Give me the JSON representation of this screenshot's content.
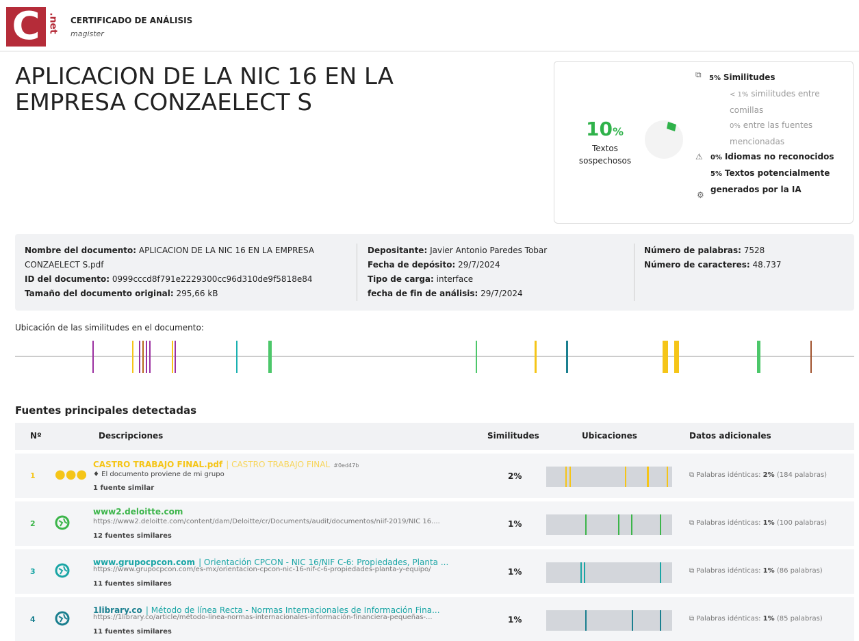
{
  "header": {
    "logo_letter": "C",
    "logo_side": ".net",
    "title": "CERTIFICADO DE ANÁLISIS",
    "subtitle": "magister"
  },
  "document_title": "APLICACION DE LA NIC 16 EN LA EMPRESA CONZAELECT S",
  "summary": {
    "value": "10",
    "unit": "%",
    "label": "Textos sospechosos",
    "items": [
      {
        "value": "5%",
        "label": "Similitudes",
        "sub": [
          {
            "value": "< 1%",
            "label": "similitudes entre comillas"
          },
          {
            "value": "0%",
            "label": "entre las fuentes mencionadas"
          }
        ]
      },
      {
        "value": "0%",
        "label": "Idiomas no reconocidos"
      },
      {
        "value": "5%",
        "label": "Textos potencialmente generados por la IA"
      }
    ]
  },
  "info": [
    [
      {
        "label": "Nombre del documento:",
        "value": "APLICACION DE LA NIC 16 EN LA EMPRESA CONZAELECT S.pdf"
      },
      {
        "label": "ID del documento:",
        "value": "0999cccd8f791e2229300cc96d310de9f5818e84"
      },
      {
        "label": "Tamaño del documento original:",
        "value": "295,66 kB"
      }
    ],
    [
      {
        "label": "Depositante:",
        "value": "Javier Antonio Paredes Tobar"
      },
      {
        "label": "Fecha de depósito:",
        "value": "29/7/2024"
      },
      {
        "label": "Tipo de carga:",
        "value": "interface"
      },
      {
        "label": "fecha de fin de análisis:",
        "value": "29/7/2024"
      }
    ],
    [
      {
        "label": "Número de palabras:",
        "value": "7528"
      },
      {
        "label": "Número de caracteres:",
        "value": "48.737"
      }
    ]
  ],
  "location_title": "Ubicación de las similitudes en el documento:",
  "sources": {
    "title": "Fuentes principales detectadas",
    "headers": [
      "Nº",
      "Descripciones",
      "Similitudes",
      "Ubicaciones",
      "Datos adicionales"
    ],
    "rows": [
      {
        "n": "1",
        "name": "CASTRO TRABAJO FINAL.pdf",
        "desc": "| CASTRO TRABAJO FINAL",
        "hash": "#0ed47b",
        "note": "El documento proviene de mi grupo",
        "similar": "1 fuente similar",
        "similarity": "2%",
        "extra_label": "Palabras idénticas:",
        "extra_pct": "2%",
        "extra_words": "(184 palabras)"
      },
      {
        "n": "2",
        "name": "www2.deloitte.com",
        "url": "https://www2.deloitte.com/content/dam/Deloitte/cr/Documents/audit/documentos/niif-2019/NIC 16....",
        "similar": "12 fuentes similares",
        "similarity": "1%",
        "extra_label": "Palabras idénticas:",
        "extra_pct": "1%",
        "extra_words": "(100 palabras)"
      },
      {
        "n": "3",
        "name": "www.grupocpcon.com",
        "desc": "| Orientación CPCON - NIC 16/NIF C-6: Propiedades, Planta ...",
        "url": "https://www.grupocpcon.com/es-mx/orientacion-cpcon-nic-16-nif-c-6-propiedades-planta-y-equipo/",
        "similar": "11 fuentes similares",
        "similarity": "1%",
        "extra_label": "Palabras idénticas:",
        "extra_pct": "1%",
        "extra_words": "(86 palabras)"
      },
      {
        "n": "4",
        "name": "1library.co",
        "desc": "| Método de línea Recta - Normas Internacionales de Información Fina...",
        "url": "https://1library.co/article/método-linea-normas-internacionales-información-financiera-pequeñas-...",
        "similar": "11 fuentes similares",
        "similarity": "1%",
        "extra_label": "Palabras idénticas:",
        "extra_pct": "1%",
        "extra_words": "(85 palabras)"
      }
    ]
  }
}
